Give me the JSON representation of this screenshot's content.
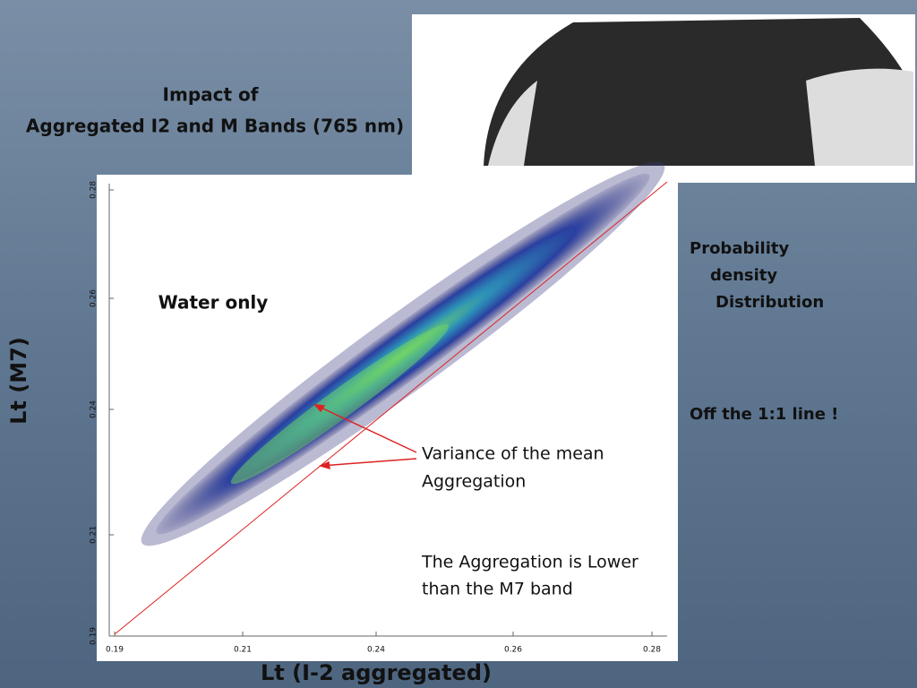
{
  "slide": {
    "title": [
      "Impact of",
      "Aggregated   I2 and M Bands  (765 nm)"
    ],
    "plot": {
      "y_axis_label": "Lt (M7)",
      "x_axis_label": "Lt (I-2 aggregated)",
      "y_tick_labels": [
        "0.28",
        "0.26",
        "0.24",
        "0.21",
        "0.19"
      ],
      "x_tick_labels": [
        "0.19",
        "0.21",
        "0.24",
        "0.26",
        "0.28"
      ],
      "inset_label": "Water only"
    },
    "side_notes": [
      [
        "Probability",
        "density",
        "Distribution"
      ],
      [
        "Off the   1:1 line !"
      ]
    ],
    "annotations": [
      [
        "Variance of the mean",
        "Aggregation"
      ],
      [
        "The Aggregation is Lower",
        " than the M7 band"
      ]
    ]
  }
}
